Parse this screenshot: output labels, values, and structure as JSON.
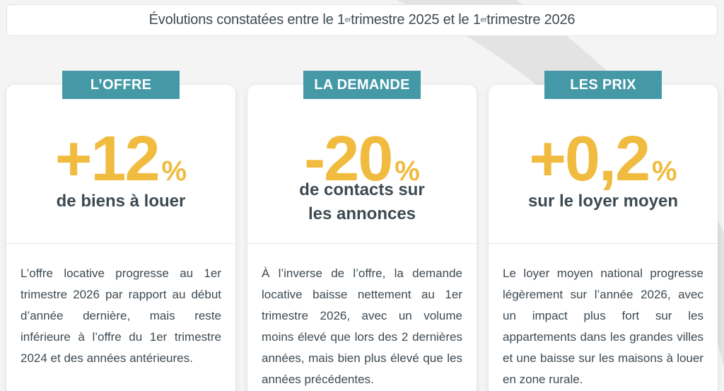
{
  "header": {
    "prefix": "Évolutions constatées entre le 1",
    "sup1": "er",
    "middle": " trimestre 2025 et le 1",
    "sup2": "er",
    "suffix": " trimestre 2026"
  },
  "cards": [
    {
      "badge": "L’OFFRE",
      "value": "+12",
      "unit": "%",
      "caption": "de biens à louer",
      "text": "L’offre locative progresse au 1er trimestre 2026 par rapport au début d’année dernière, mais reste inférieure à l’offre du 1er trimestre 2024 et des années antérieures."
    },
    {
      "badge": "LA DEMANDE",
      "value": "-20",
      "unit": "%",
      "caption": "de contacts sur les annonces",
      "text": "À l’inverse de l’offre, la demande locative baisse nettement au 1er trimestre 2026, avec un volume moins élevé que lors des 2 dernières années, mais bien plus élevé que les années précédentes."
    },
    {
      "badge": "LES PRIX",
      "value": "+0,2",
      "unit": "%",
      "caption": "sur le loyer moyen",
      "text": "Le loyer moyen national progresse légèrement sur l’année 2026, avec un impact plus fort sur les appartements dans les grandes villes et une baisse sur les maisons à louer en zone rurale."
    }
  ],
  "colors": {
    "accent": "#f0bb3e",
    "badge": "#4599a6",
    "text": "#3e4a52"
  }
}
